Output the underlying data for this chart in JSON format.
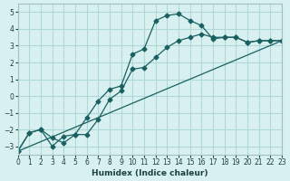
{
  "xlabel": "Humidex (Indice chaleur)",
  "ylabel": "",
  "bg_color": "#d8f0f0",
  "grid_color": "#b0d8d8",
  "line_color": "#1a6060",
  "line_color2": "#1a6060",
  "xlim": [
    0,
    23
  ],
  "ylim": [
    -3.5,
    5.5
  ],
  "yticks": [
    -3,
    -2,
    -1,
    0,
    1,
    2,
    3,
    4,
    5
  ],
  "xticks": [
    0,
    1,
    2,
    3,
    4,
    5,
    6,
    7,
    8,
    9,
    10,
    11,
    12,
    13,
    14,
    15,
    16,
    17,
    18,
    19,
    20,
    21,
    22,
    23
  ],
  "curve1_x": [
    0,
    1,
    2,
    3,
    4,
    5,
    6,
    7,
    8,
    9,
    10,
    11,
    12,
    13,
    14,
    15,
    16,
    17,
    18,
    19,
    20,
    21,
    22,
    23
  ],
  "curve1_y": [
    -3.3,
    -2.2,
    -2.0,
    -2.5,
    -2.8,
    -2.3,
    -1.3,
    -0.3,
    0.4,
    0.6,
    2.5,
    2.8,
    4.5,
    4.8,
    4.9,
    4.5,
    4.2,
    3.4,
    3.5,
    3.5,
    3.2,
    3.3,
    3.3,
    3.3
  ],
  "curve2_x": [
    0,
    1,
    2,
    3,
    4,
    5,
    6,
    7,
    8,
    9,
    10,
    11,
    12,
    13,
    14,
    15,
    16,
    17,
    18,
    19,
    20,
    21,
    22,
    23
  ],
  "curve2_y": [
    -3.3,
    -2.2,
    -2.0,
    -3.0,
    -2.4,
    -2.3,
    -2.3,
    -1.4,
    -0.2,
    0.3,
    1.6,
    1.7,
    2.3,
    2.9,
    3.3,
    3.5,
    3.7,
    3.5,
    3.5,
    3.5,
    3.2,
    3.3,
    3.3,
    3.3
  ],
  "curve3_x": [
    0,
    23
  ],
  "curve3_y": [
    -3.3,
    3.3
  ]
}
